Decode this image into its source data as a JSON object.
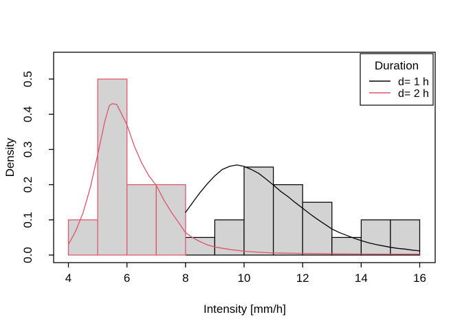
{
  "figure": {
    "background": "#ffffff",
    "bar_fill": "#D3D3D3",
    "frame_color": "#000000"
  },
  "chart_data": {
    "type": "bar",
    "subtype": "histogram-with-density-curves",
    "title": "",
    "xlabel": "Intensity [mm/h]",
    "ylabel": "Density",
    "xlim": [
      4,
      16
    ],
    "ylim": [
      0,
      0.5
    ],
    "grid": false,
    "x_ticks": [
      {
        "value": 4,
        "label": "4"
      },
      {
        "value": 6,
        "label": "6"
      },
      {
        "value": 8,
        "label": "8"
      },
      {
        "value": 10,
        "label": "10"
      },
      {
        "value": 12,
        "label": "12"
      },
      {
        "value": 14,
        "label": "14"
      },
      {
        "value": 16,
        "label": "16"
      }
    ],
    "y_ticks": [
      {
        "value": 0.0,
        "label": "0.0"
      },
      {
        "value": 0.1,
        "label": "0.1"
      },
      {
        "value": 0.2,
        "label": "0.2"
      },
      {
        "value": 0.3,
        "label": "0.3"
      },
      {
        "value": 0.4,
        "label": "0.4"
      },
      {
        "value": 0.5,
        "label": "0.5"
      }
    ],
    "legend": {
      "title": "Duration",
      "position": "topright",
      "entries": [
        {
          "label": "d= 1 h",
          "color": "#000000"
        },
        {
          "label": "d= 2 h",
          "color": "#DF536B"
        }
      ]
    },
    "histograms": [
      {
        "name": "d= 1 h",
        "border_color": "#000000",
        "fill": "#D3D3D3",
        "breaks": [
          8,
          9,
          10,
          11,
          12,
          13,
          14,
          15,
          16
        ],
        "densities": [
          0.05,
          0.1,
          0.25,
          0.2,
          0.15,
          0.05,
          0.1,
          0.1
        ]
      },
      {
        "name": "d= 2 h",
        "border_color": "#DF536B",
        "fill": "#D3D3D3",
        "breaks": [
          4,
          5,
          6,
          7,
          8
        ],
        "densities": [
          0.1,
          0.5,
          0.2,
          0.2
        ]
      }
    ],
    "density_curves": [
      {
        "name": "d= 1 h",
        "color": "#000000",
        "points": [
          [
            8.0,
            0.121
          ],
          [
            8.25,
            0.15
          ],
          [
            8.5,
            0.178
          ],
          [
            8.75,
            0.203
          ],
          [
            9.0,
            0.225
          ],
          [
            9.25,
            0.243
          ],
          [
            9.5,
            0.252
          ],
          [
            9.75,
            0.256
          ],
          [
            10.0,
            0.252
          ],
          [
            10.25,
            0.243
          ],
          [
            10.5,
            0.232
          ],
          [
            10.75,
            0.216
          ],
          [
            11.0,
            0.199
          ],
          [
            11.25,
            0.181
          ],
          [
            11.5,
            0.166
          ],
          [
            11.75,
            0.149
          ],
          [
            12.0,
            0.133
          ],
          [
            12.25,
            0.117
          ],
          [
            12.5,
            0.102
          ],
          [
            12.75,
            0.088
          ],
          [
            13.0,
            0.074
          ],
          [
            13.25,
            0.064
          ],
          [
            13.5,
            0.056
          ],
          [
            13.75,
            0.048
          ],
          [
            14.0,
            0.041
          ],
          [
            14.25,
            0.035
          ],
          [
            14.5,
            0.03
          ],
          [
            14.75,
            0.026
          ],
          [
            15.0,
            0.022
          ],
          [
            15.25,
            0.019
          ],
          [
            15.5,
            0.017
          ],
          [
            15.75,
            0.014
          ],
          [
            16.0,
            0.012
          ]
        ]
      },
      {
        "name": "d= 2 h",
        "color": "#DF536B",
        "points": [
          [
            4.0,
            0.03
          ],
          [
            4.25,
            0.068
          ],
          [
            4.5,
            0.12
          ],
          [
            4.75,
            0.192
          ],
          [
            5.0,
            0.285
          ],
          [
            5.25,
            0.382
          ],
          [
            5.4,
            0.425
          ],
          [
            5.5,
            0.43
          ],
          [
            5.65,
            0.428
          ],
          [
            5.75,
            0.412
          ],
          [
            6.0,
            0.37
          ],
          [
            6.25,
            0.31
          ],
          [
            6.5,
            0.262
          ],
          [
            6.75,
            0.225
          ],
          [
            7.0,
            0.198
          ],
          [
            7.25,
            0.158
          ],
          [
            7.5,
            0.124
          ],
          [
            7.75,
            0.094
          ],
          [
            8.0,
            0.064
          ],
          [
            8.25,
            0.049
          ],
          [
            8.5,
            0.038
          ],
          [
            8.75,
            0.029
          ],
          [
            9.0,
            0.023
          ],
          [
            9.5,
            0.016
          ],
          [
            10.0,
            0.011
          ],
          [
            10.5,
            0.008
          ],
          [
            11.0,
            0.006
          ],
          [
            12.0,
            0.0045
          ],
          [
            13.0,
            0.0035
          ],
          [
            14.0,
            0.003
          ],
          [
            15.0,
            0.0025
          ],
          [
            16.0,
            0.0025
          ]
        ]
      }
    ]
  }
}
